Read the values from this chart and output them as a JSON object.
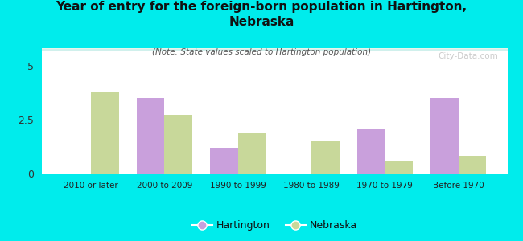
{
  "title": "Year of entry for the foreign-born population in Hartington,\nNebraska",
  "subtitle": "(Note: State values scaled to Hartington population)",
  "categories": [
    "2010 or later",
    "2000 to 2009",
    "1990 to 1999",
    "1980 to 1989",
    "1970 to 1979",
    "Before 1970"
  ],
  "hartington": [
    0,
    3.5,
    1.2,
    0,
    2.1,
    3.5
  ],
  "nebraska": [
    3.8,
    2.7,
    1.9,
    1.5,
    0.55,
    0.8
  ],
  "hartington_color": "#c9a0dc",
  "nebraska_color": "#c8d89a",
  "background_color": "#00ecec",
  "ylim": [
    0,
    5.8
  ],
  "yticks": [
    0,
    2.5,
    5
  ],
  "bar_width": 0.38,
  "legend_hartington": "Hartington",
  "legend_nebraska": "Nebraska",
  "watermark": "City-Data.com"
}
